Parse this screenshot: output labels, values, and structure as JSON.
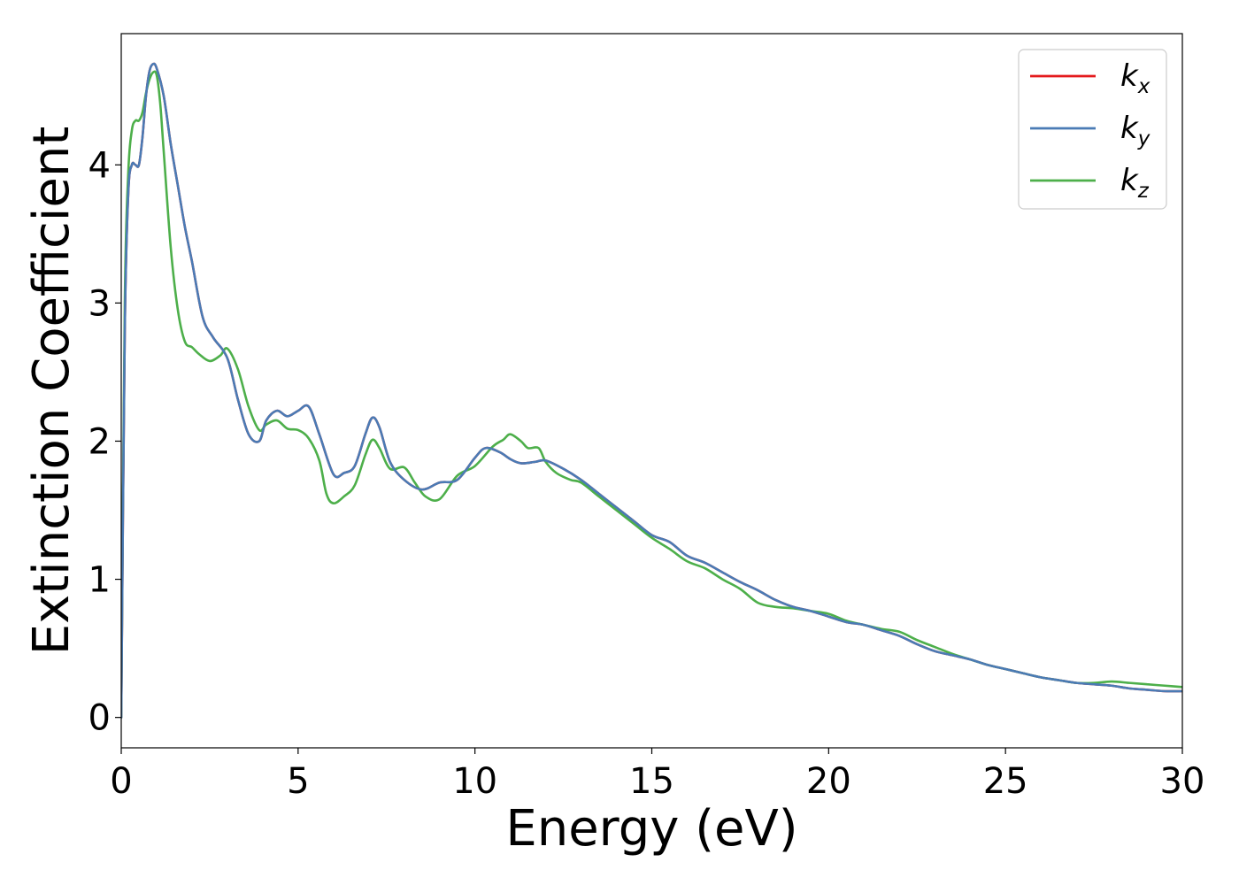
{
  "chart_data": {
    "type": "line",
    "title": "",
    "xlabel": "Energy (eV)",
    "ylabel": "Extinction Coefficient",
    "xlim": [
      0,
      30
    ],
    "ylim": [
      -0.22,
      4.95
    ],
    "xticks": [
      0,
      5,
      10,
      15,
      20,
      25,
      30
    ],
    "xtick_labels": [
      "0",
      "5",
      "10",
      "15",
      "20",
      "25",
      "30"
    ],
    "yticks": [
      0,
      1,
      2,
      3,
      4
    ],
    "ytick_labels": [
      "0",
      "1",
      "2",
      "3",
      "4"
    ],
    "grid": false,
    "legend_position": "top-right",
    "series": [
      {
        "name": "k_x",
        "legend_base": "k",
        "legend_sub": "x",
        "color": "#e41a1c",
        "x": [
          0,
          0.1,
          0.2,
          0.3,
          0.4,
          0.5,
          0.6,
          0.7,
          0.8,
          0.9,
          1.0,
          1.2,
          1.4,
          1.6,
          1.8,
          2.0,
          2.3,
          2.6,
          3.0,
          3.3,
          3.6,
          3.9,
          4.1,
          4.4,
          4.7,
          5.0,
          5.3,
          5.6,
          6.0,
          6.3,
          6.6,
          6.9,
          7.1,
          7.3,
          7.6,
          8.0,
          8.5,
          9.0,
          9.5,
          10.0,
          10.3,
          10.7,
          11.0,
          11.3,
          11.7,
          12.0,
          12.5,
          13.0,
          13.5,
          14.0,
          14.5,
          15.0,
          15.5,
          16.0,
          16.5,
          17.0,
          17.5,
          18.0,
          18.5,
          19.0,
          19.5,
          20.0,
          20.5,
          21.0,
          21.5,
          22.0,
          22.5,
          23.0,
          23.5,
          24.0,
          24.5,
          25.0,
          25.5,
          26.0,
          26.5,
          27.0,
          27.5,
          28.0,
          28.5,
          29.0,
          29.5,
          30.0
        ],
        "y": [
          0,
          2.8,
          3.8,
          4.0,
          4.0,
          4.0,
          4.2,
          4.5,
          4.68,
          4.73,
          4.7,
          4.5,
          4.15,
          3.85,
          3.55,
          3.3,
          2.9,
          2.75,
          2.6,
          2.3,
          2.05,
          2.0,
          2.15,
          2.22,
          2.18,
          2.22,
          2.25,
          2.05,
          1.76,
          1.77,
          1.82,
          2.05,
          2.17,
          2.1,
          1.85,
          1.72,
          1.65,
          1.7,
          1.72,
          1.88,
          1.95,
          1.92,
          1.87,
          1.84,
          1.85,
          1.86,
          1.8,
          1.72,
          1.62,
          1.52,
          1.42,
          1.32,
          1.27,
          1.17,
          1.12,
          1.05,
          0.98,
          0.92,
          0.85,
          0.8,
          0.77,
          0.73,
          0.69,
          0.67,
          0.63,
          0.59,
          0.53,
          0.48,
          0.45,
          0.42,
          0.38,
          0.35,
          0.32,
          0.29,
          0.27,
          0.25,
          0.24,
          0.23,
          0.21,
          0.2,
          0.19,
          0.19
        ]
      },
      {
        "name": "k_y",
        "legend_base": "k",
        "legend_sub": "y",
        "color": "#4a7bb5",
        "x": [
          0,
          0.1,
          0.2,
          0.3,
          0.4,
          0.5,
          0.6,
          0.7,
          0.8,
          0.9,
          1.0,
          1.2,
          1.4,
          1.6,
          1.8,
          2.0,
          2.3,
          2.6,
          3.0,
          3.3,
          3.6,
          3.9,
          4.1,
          4.4,
          4.7,
          5.0,
          5.3,
          5.6,
          6.0,
          6.3,
          6.6,
          6.9,
          7.1,
          7.3,
          7.6,
          8.0,
          8.5,
          9.0,
          9.5,
          10.0,
          10.3,
          10.7,
          11.0,
          11.3,
          11.7,
          12.0,
          12.5,
          13.0,
          13.5,
          14.0,
          14.5,
          15.0,
          15.5,
          16.0,
          16.5,
          17.0,
          17.5,
          18.0,
          18.5,
          19.0,
          19.5,
          20.0,
          20.5,
          21.0,
          21.5,
          22.0,
          22.5,
          23.0,
          23.5,
          24.0,
          24.5,
          25.0,
          25.5,
          26.0,
          26.5,
          27.0,
          27.5,
          28.0,
          28.5,
          29.0,
          29.5,
          30.0
        ],
        "y": [
          0,
          2.8,
          3.8,
          4.0,
          4.0,
          4.0,
          4.2,
          4.5,
          4.68,
          4.73,
          4.7,
          4.5,
          4.15,
          3.85,
          3.55,
          3.3,
          2.9,
          2.75,
          2.6,
          2.3,
          2.05,
          2.0,
          2.15,
          2.22,
          2.18,
          2.22,
          2.25,
          2.05,
          1.76,
          1.77,
          1.82,
          2.05,
          2.17,
          2.1,
          1.85,
          1.72,
          1.65,
          1.7,
          1.72,
          1.88,
          1.95,
          1.92,
          1.87,
          1.84,
          1.85,
          1.86,
          1.8,
          1.72,
          1.62,
          1.52,
          1.42,
          1.32,
          1.27,
          1.17,
          1.12,
          1.05,
          0.98,
          0.92,
          0.85,
          0.8,
          0.77,
          0.73,
          0.69,
          0.67,
          0.63,
          0.59,
          0.53,
          0.48,
          0.45,
          0.42,
          0.38,
          0.35,
          0.32,
          0.29,
          0.27,
          0.25,
          0.24,
          0.23,
          0.21,
          0.2,
          0.19,
          0.19
        ]
      },
      {
        "name": "k_z",
        "legend_base": "k",
        "legend_sub": "z",
        "color": "#4daf4a",
        "x": [
          0,
          0.1,
          0.2,
          0.3,
          0.4,
          0.5,
          0.6,
          0.7,
          0.8,
          0.9,
          1.0,
          1.1,
          1.2,
          1.4,
          1.6,
          1.8,
          2.0,
          2.2,
          2.5,
          2.8,
          3.0,
          3.3,
          3.6,
          3.9,
          4.1,
          4.4,
          4.7,
          5.0,
          5.3,
          5.6,
          5.8,
          6.0,
          6.3,
          6.6,
          6.9,
          7.1,
          7.3,
          7.6,
          8.0,
          8.3,
          8.6,
          9.0,
          9.5,
          10.0,
          10.5,
          10.8,
          11.0,
          11.3,
          11.5,
          11.8,
          12.0,
          12.3,
          12.7,
          13.0,
          13.5,
          14.0,
          14.5,
          15.0,
          15.5,
          16.0,
          16.5,
          17.0,
          17.5,
          18.0,
          18.5,
          19.0,
          19.5,
          20.0,
          20.5,
          21.0,
          21.5,
          22.0,
          22.5,
          23.0,
          23.5,
          24.0,
          24.5,
          25.0,
          25.5,
          26.0,
          26.5,
          27.0,
          27.5,
          28.0,
          28.5,
          29.0,
          29.5,
          30.0
        ],
        "y": [
          0,
          3.0,
          3.95,
          4.25,
          4.32,
          4.32,
          4.38,
          4.52,
          4.62,
          4.67,
          4.65,
          4.45,
          4.1,
          3.4,
          2.95,
          2.72,
          2.68,
          2.63,
          2.58,
          2.62,
          2.67,
          2.52,
          2.25,
          2.08,
          2.12,
          2.15,
          2.09,
          2.08,
          2.02,
          1.86,
          1.62,
          1.55,
          1.6,
          1.68,
          1.9,
          2.01,
          1.95,
          1.8,
          1.81,
          1.7,
          1.6,
          1.58,
          1.75,
          1.82,
          1.96,
          2.01,
          2.05,
          2.0,
          1.95,
          1.95,
          1.85,
          1.77,
          1.72,
          1.7,
          1.6,
          1.5,
          1.4,
          1.3,
          1.22,
          1.13,
          1.08,
          1.0,
          0.93,
          0.83,
          0.8,
          0.79,
          0.77,
          0.75,
          0.7,
          0.67,
          0.64,
          0.62,
          0.56,
          0.51,
          0.46,
          0.42,
          0.38,
          0.35,
          0.32,
          0.29,
          0.27,
          0.25,
          0.25,
          0.26,
          0.25,
          0.24,
          0.23,
          0.22
        ]
      }
    ]
  }
}
